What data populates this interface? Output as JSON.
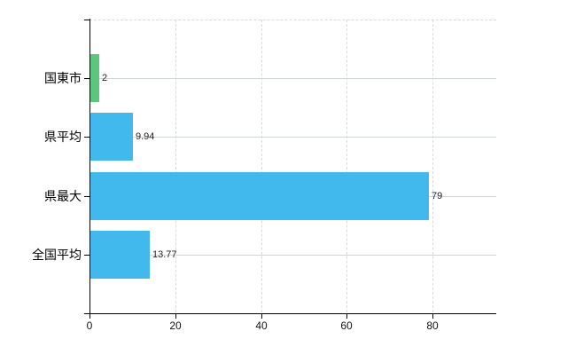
{
  "chart_data": {
    "type": "bar",
    "orientation": "horizontal",
    "title": "",
    "xlabel": "",
    "ylabel": "",
    "categories": [
      "国東市",
      "県平均",
      "県最大",
      "全国平均"
    ],
    "values": [
      2,
      9.94,
      79,
      13.77
    ],
    "value_labels": [
      "2",
      "9.94",
      "79",
      "13.77"
    ],
    "bar_colors": [
      "#5dc67d",
      "#41b9ec",
      "#41b9ec",
      "#41b9ec"
    ],
    "x_ticks": [
      0,
      20,
      40,
      60,
      80
    ],
    "x_tick_labels": [
      "0",
      "20",
      "40",
      "60",
      "80"
    ],
    "xlim": [
      0,
      94.9
    ],
    "grid": {
      "vertical_dashed_at_ticks": true,
      "horizontal_line_per_category": true,
      "top_border_dashed": true
    },
    "legend": "none"
  },
  "colors": {
    "background": "#ffffff",
    "bar_highlight": "#5dc67d",
    "bar_default": "#41b9ec",
    "gridline_dashed": "#d9d9d9",
    "gridline_horizontal": "#cfd8cf",
    "axis": "#000000",
    "text": "#222222"
  }
}
